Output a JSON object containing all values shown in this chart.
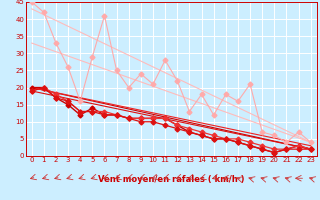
{
  "background_color": "#cceeff",
  "grid_color": "#ffffff",
  "xlabel": "Vent moyen/en rafales ( km/h )",
  "xlabel_color": "#cc0000",
  "xlim": [
    -0.5,
    23.5
  ],
  "ylim": [
    0,
    45
  ],
  "yticks": [
    0,
    5,
    10,
    15,
    20,
    25,
    30,
    35,
    40,
    45
  ],
  "xticks": [
    0,
    1,
    2,
    3,
    4,
    5,
    6,
    7,
    8,
    9,
    10,
    11,
    12,
    13,
    14,
    15,
    16,
    17,
    18,
    19,
    20,
    21,
    22,
    23
  ],
  "lines": [
    {
      "x": [
        0,
        1,
        2,
        3,
        4,
        5,
        6,
        7,
        8,
        9,
        10,
        11,
        12,
        13,
        14,
        15,
        16,
        17,
        18,
        19,
        20,
        21,
        22,
        23
      ],
      "y": [
        45,
        42,
        33,
        26,
        16,
        29,
        41,
        25,
        20,
        24,
        21,
        28,
        22,
        13,
        18,
        12,
        18,
        16,
        21,
        7,
        6,
        4,
        7,
        4
      ],
      "color": "#ffaaaa",
      "lw": 0.8,
      "marker": "D",
      "ms": 2.5
    },
    {
      "x": [
        0,
        23
      ],
      "y": [
        43,
        4
      ],
      "color": "#ffbbbb",
      "lw": 0.8,
      "marker": null,
      "ms": 0
    },
    {
      "x": [
        0,
        23
      ],
      "y": [
        33,
        4
      ],
      "color": "#ffbbbb",
      "lw": 0.8,
      "marker": null,
      "ms": 0
    },
    {
      "x": [
        0,
        1,
        2,
        3,
        4,
        5,
        6,
        7,
        8,
        9,
        10,
        11,
        12,
        13,
        14,
        15,
        16,
        17,
        18,
        19,
        20,
        21,
        22,
        23
      ],
      "y": [
        20,
        20,
        17,
        15,
        12,
        14,
        12,
        12,
        11,
        11,
        11,
        11,
        9,
        7,
        6,
        5,
        5,
        4,
        3,
        2,
        1,
        2,
        3,
        2
      ],
      "color": "#cc0000",
      "lw": 1.0,
      "marker": "D",
      "ms": 2.5
    },
    {
      "x": [
        0,
        1,
        2,
        3,
        4,
        5,
        6,
        7,
        8,
        9,
        10,
        11,
        12,
        13,
        14,
        15,
        16,
        17,
        18,
        19,
        20,
        21,
        22,
        23
      ],
      "y": [
        19,
        20,
        18,
        16,
        13,
        13,
        13,
        12,
        11,
        11,
        11,
        11,
        9,
        8,
        7,
        6,
        5,
        5,
        4,
        3,
        2,
        2,
        3,
        2
      ],
      "color": "#ee3333",
      "lw": 0.9,
      "marker": "D",
      "ms": 2.5
    },
    {
      "x": [
        0,
        1,
        2,
        3,
        4,
        5,
        6,
        7,
        8,
        9,
        10,
        11,
        12,
        13,
        14,
        15,
        16,
        17,
        18,
        19,
        20,
        21,
        22,
        23
      ],
      "y": [
        19,
        20,
        17,
        16,
        13,
        13,
        12,
        12,
        11,
        10,
        10,
        9,
        8,
        7,
        6,
        5,
        5,
        4,
        3,
        2,
        1,
        2,
        2,
        2
      ],
      "color": "#dd1111",
      "lw": 0.9,
      "marker": "D",
      "ms": 2.5
    },
    {
      "x": [
        0,
        23
      ],
      "y": [
        20,
        2
      ],
      "color": "#cc0000",
      "lw": 0.8,
      "marker": null,
      "ms": 0
    },
    {
      "x": [
        0,
        23
      ],
      "y": [
        20,
        3
      ],
      "color": "#ee2222",
      "lw": 0.8,
      "marker": null,
      "ms": 0
    },
    {
      "x": [
        0,
        23
      ],
      "y": [
        19,
        2
      ],
      "color": "#dd1111",
      "lw": 0.8,
      "marker": null,
      "ms": 0
    }
  ],
  "arrow_angles": [
    225,
    225,
    225,
    225,
    225,
    225,
    225,
    225,
    225,
    225,
    225,
    225,
    225,
    225,
    225,
    225,
    270,
    315,
    315,
    315,
    315,
    315,
    270,
    315
  ],
  "tick_fontsize": 5,
  "label_fontsize": 6
}
